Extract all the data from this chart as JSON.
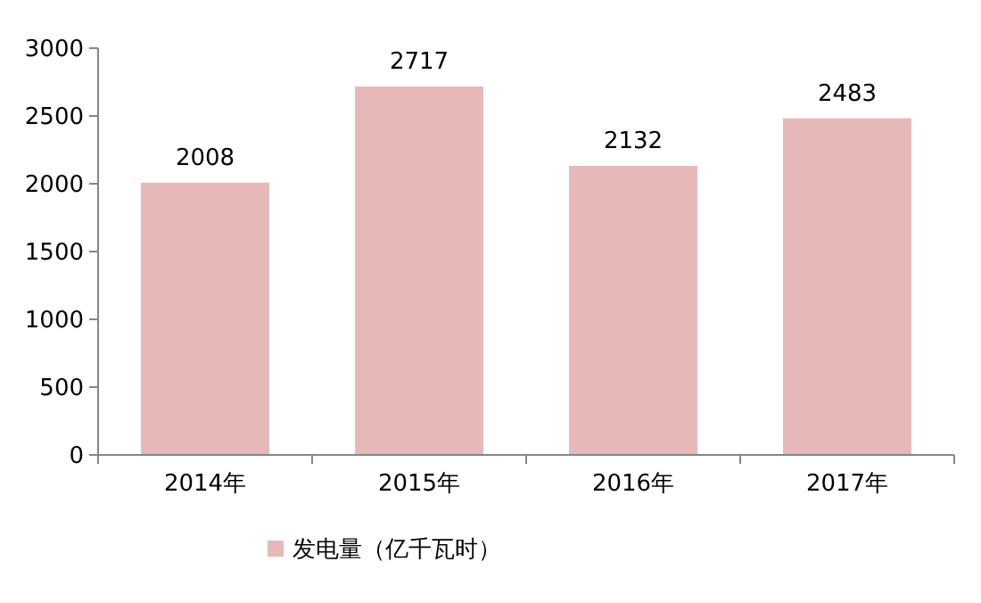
{
  "chart_data": {
    "type": "bar",
    "categories": [
      "2014年",
      "2015年",
      "2016年",
      "2017年"
    ],
    "series": [
      {
        "name": "发电量（亿千瓦时）",
        "color": "#e6b9b8",
        "values": [
          2008,
          2717,
          2132,
          2483
        ]
      }
    ],
    "ylim": [
      0,
      3000
    ],
    "yticks": [
      0,
      500,
      1000,
      1500,
      2000,
      2500,
      3000
    ],
    "data_labels": true,
    "legend": "bottom",
    "grid": false
  }
}
